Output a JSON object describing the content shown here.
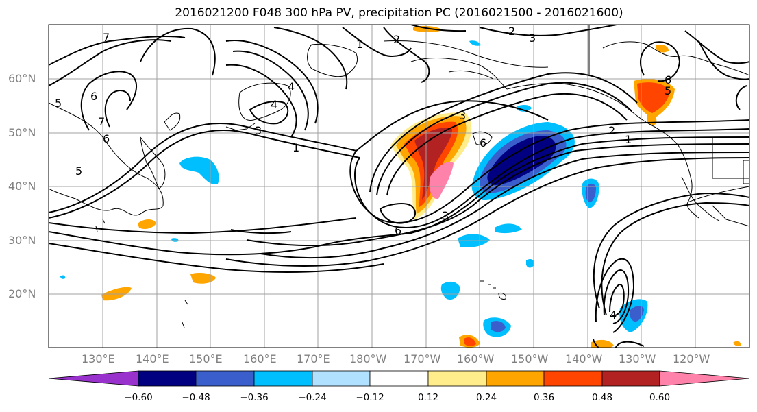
{
  "title": "2016021200 F048 300 hPa PV, precipitation PC (2016021500 - 2016021600)",
  "lat_labels": [
    "60°N",
    "50°N",
    "40°N",
    "30°N",
    "20°N"
  ],
  "lon_labels": [
    "130°E",
    "140°E",
    "150°E",
    "160°E",
    "170°E",
    "180°W",
    "170°W",
    "160°W",
    "150°W",
    "140°W",
    "130°W",
    "120°W"
  ],
  "colorbar": {
    "ticks": [
      "−0.60",
      "−0.48",
      "−0.36",
      "−0.24",
      "−0.12",
      "0.12",
      "0.24",
      "0.36",
      "0.48",
      "0.60"
    ],
    "colors": [
      "#9932cc",
      "#000080",
      "#3a5fcd",
      "#00bfff",
      "#b0e2ff",
      "#ffffff",
      "#ffec8b",
      "#ffa500",
      "#ff4500",
      "#b22222",
      "#ff82ab"
    ]
  },
  "contour_labels": [
    "7",
    "6",
    "5",
    "4",
    "3",
    "2",
    "1",
    "7",
    "5",
    "6",
    "4",
    "3",
    "2",
    "1",
    "6",
    "5",
    "6",
    "3",
    "6",
    "3",
    "2",
    "1",
    "4"
  ]
}
